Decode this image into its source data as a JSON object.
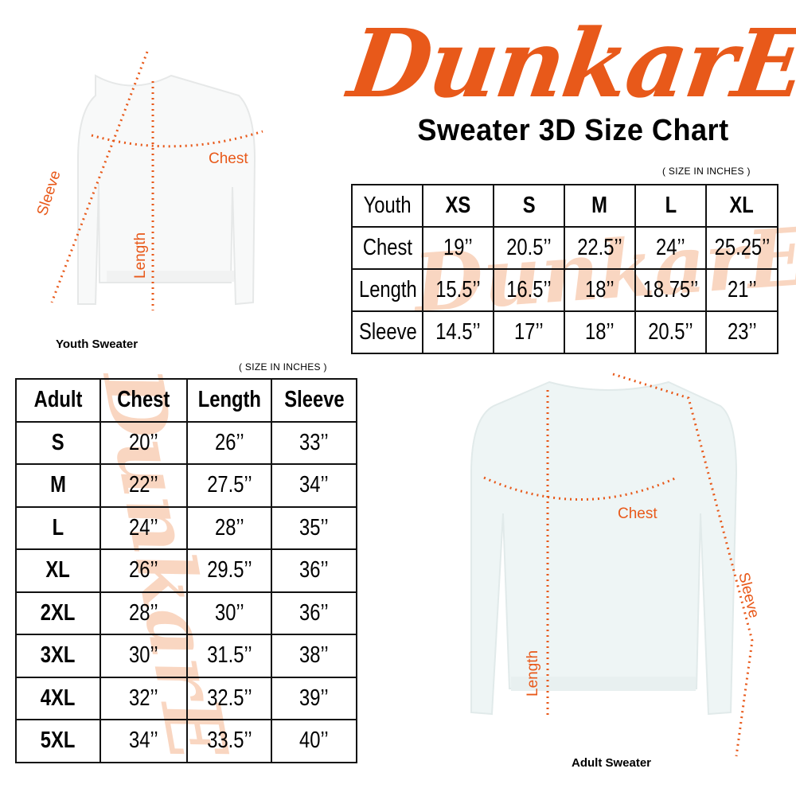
{
  "brand": {
    "logo_text": "DunkarE",
    "color": "#e8591a",
    "watermark_color": "#f7c9ad"
  },
  "title": "Sweater 3D Size Chart",
  "youth_table": {
    "units_note": "( SIZE IN INCHES )",
    "header": [
      "Youth",
      "XS",
      "S",
      "M",
      "L",
      "XL"
    ],
    "rows": [
      [
        "Chest",
        "19’’",
        "20.5’’",
        "22.5’’",
        "24’’",
        "25.25’’"
      ],
      [
        "Length",
        "15.5’’",
        "16.5’’",
        "18’’",
        "18.75’’",
        "21’’"
      ],
      [
        "Sleeve",
        "14.5’’",
        "17’’",
        "18’’",
        "20.5’’",
        "23’’"
      ]
    ]
  },
  "adult_table": {
    "units_note": "( SIZE IN INCHES )",
    "header": [
      "Adult",
      "Chest",
      "Length",
      "Sleeve"
    ],
    "rows": [
      [
        "S",
        "20’’",
        "26’’",
        "33’’"
      ],
      [
        "M",
        "22’’",
        "27.5’’",
        "34’’"
      ],
      [
        "L",
        "24’’",
        "28’’",
        "35’’"
      ],
      [
        "XL",
        "26’’",
        "29.5’’",
        "36’’"
      ],
      [
        "2XL",
        "28’’",
        "30’’",
        "36’’"
      ],
      [
        "3XL",
        "30’’",
        "31.5’’",
        "38’’"
      ],
      [
        "4XL",
        "32’’",
        "32.5’’",
        "39’’"
      ],
      [
        "5XL",
        "34’’",
        "33.5’’",
        "40’’"
      ]
    ]
  },
  "youth_sweater": {
    "caption": "Youth Sweater",
    "labels": {
      "chest": "Chest",
      "length": "Length",
      "sleeve": "Sleeve"
    }
  },
  "adult_sweater": {
    "caption": "Adult Sweater",
    "labels": {
      "chest": "Chest",
      "length": "Length",
      "sleeve": "Sleeve"
    }
  }
}
